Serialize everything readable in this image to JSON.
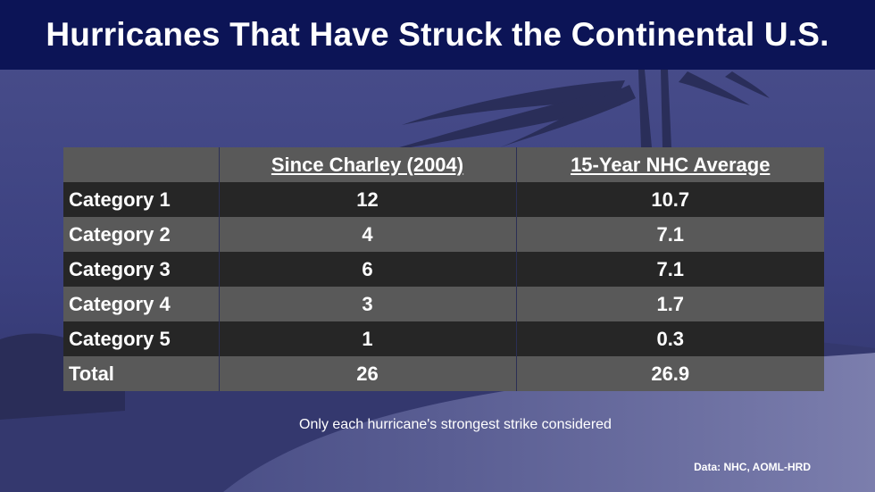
{
  "title": "Hurricanes That Have Struck the Continental U.S.",
  "chart_data": {
    "type": "table",
    "columns": [
      "",
      "Since Charley (2004)",
      "15-Year NHC Average"
    ],
    "rows": [
      {
        "label": "Category 1",
        "since_charley": "12",
        "nhc_average": "10.7"
      },
      {
        "label": "Category 2",
        "since_charley": "4",
        "nhc_average": "7.1"
      },
      {
        "label": "Category 3",
        "since_charley": "6",
        "nhc_average": "7.1"
      },
      {
        "label": "Category 4",
        "since_charley": "3",
        "nhc_average": "1.7"
      },
      {
        "label": "Category 5",
        "since_charley": "1",
        "nhc_average": "0.3"
      },
      {
        "label": "Total",
        "since_charley": "26",
        "nhc_average": "26.9"
      }
    ]
  },
  "note": "Only each hurricane's strongest strike considered",
  "source": "Data: NHC, AOML-HRD",
  "colors": {
    "banner": "#0c1456",
    "row_dark": "#262626",
    "row_light": "#595959",
    "background": "#3a3f7a"
  }
}
